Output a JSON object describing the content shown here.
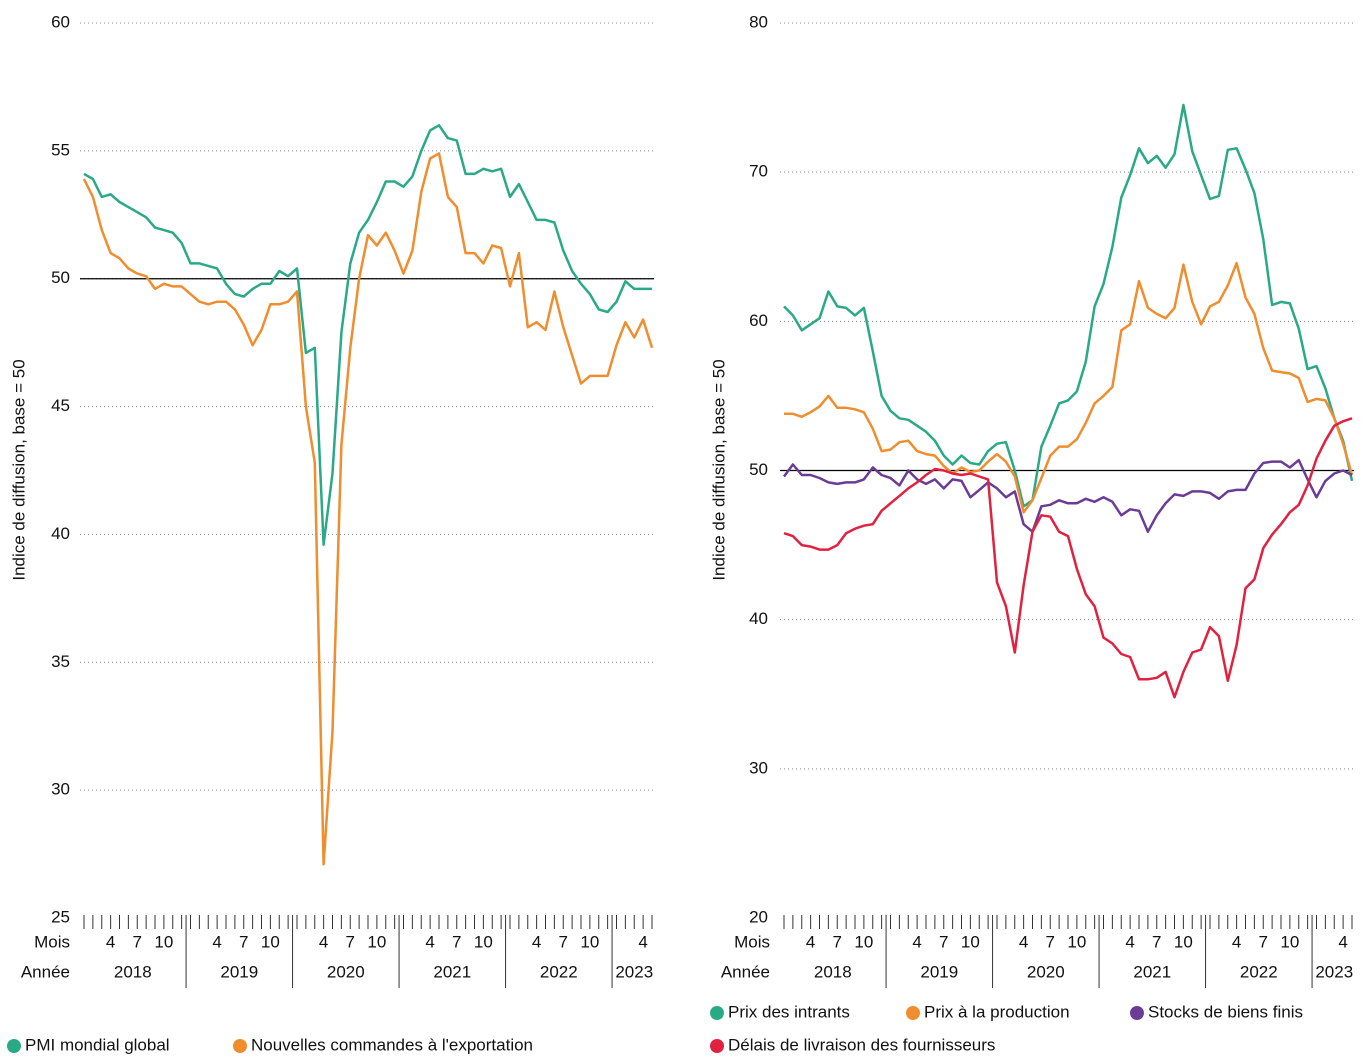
{
  "chart_data": [
    {
      "type": "line",
      "ylabel": "Indice de diffusion, base = 50",
      "xlabel_month": "Mois",
      "xlabel_year": "Année",
      "x": [
        "2018-01",
        "2018-02",
        "2018-03",
        "2018-04",
        "2018-05",
        "2018-06",
        "2018-07",
        "2018-08",
        "2018-09",
        "2018-10",
        "2018-11",
        "2018-12",
        "2019-01",
        "2019-02",
        "2019-03",
        "2019-04",
        "2019-05",
        "2019-06",
        "2019-07",
        "2019-08",
        "2019-09",
        "2019-10",
        "2019-11",
        "2019-12",
        "2020-01",
        "2020-02",
        "2020-03",
        "2020-04",
        "2020-05",
        "2020-06",
        "2020-07",
        "2020-08",
        "2020-09",
        "2020-10",
        "2020-11",
        "2020-12",
        "2021-01",
        "2021-02",
        "2021-03",
        "2021-04",
        "2021-05",
        "2021-06",
        "2021-07",
        "2021-08",
        "2021-09",
        "2021-10",
        "2021-11",
        "2021-12",
        "2022-01",
        "2022-02",
        "2022-03",
        "2022-04",
        "2022-05",
        "2022-06",
        "2022-07",
        "2022-08",
        "2022-09",
        "2022-10",
        "2022-11",
        "2022-12",
        "2023-01",
        "2023-02",
        "2023-03",
        "2023-04",
        "2023-05"
      ],
      "xticks": [
        {
          "value": "2018-04",
          "label": "4"
        },
        {
          "value": "2018-07",
          "label": "7"
        },
        {
          "value": "2018-10",
          "label": "10"
        },
        {
          "value": "2019-04",
          "label": "4"
        },
        {
          "value": "2019-07",
          "label": "7"
        },
        {
          "value": "2019-10",
          "label": "10"
        },
        {
          "value": "2020-04",
          "label": "4"
        },
        {
          "value": "2020-07",
          "label": "7"
        },
        {
          "value": "2020-10",
          "label": "10"
        },
        {
          "value": "2021-04",
          "label": "4"
        },
        {
          "value": "2021-07",
          "label": "7"
        },
        {
          "value": "2021-10",
          "label": "10"
        },
        {
          "value": "2022-04",
          "label": "4"
        },
        {
          "value": "2022-07",
          "label": "7"
        },
        {
          "value": "2022-10",
          "label": "10"
        },
        {
          "value": "2023-04",
          "label": "4"
        }
      ],
      "years": [
        "2018",
        "2019",
        "2020",
        "2021",
        "2022",
        "2023"
      ],
      "ylim": [
        25,
        60
      ],
      "yticks": [
        25,
        30,
        35,
        40,
        45,
        50,
        55,
        60
      ],
      "grid": true,
      "hline": 50,
      "series": [
        {
          "name": "PMI mondial global",
          "color": "#2aa987",
          "values": [
            54.1,
            53.9,
            53.2,
            53.3,
            53.0,
            52.8,
            52.6,
            52.4,
            52.0,
            51.9,
            51.8,
            51.4,
            50.6,
            50.6,
            50.5,
            50.4,
            49.8,
            49.4,
            49.3,
            49.6,
            49.8,
            49.8,
            50.3,
            50.1,
            50.4,
            47.1,
            47.3,
            39.6,
            42.4,
            47.9,
            50.6,
            51.8,
            52.3,
            53.0,
            53.8,
            53.8,
            53.6,
            54.0,
            55.0,
            55.8,
            56.0,
            55.5,
            55.4,
            54.1,
            54.1,
            54.3,
            54.2,
            54.3,
            53.2,
            53.7,
            53.0,
            52.3,
            52.3,
            52.2,
            51.1,
            50.3,
            49.8,
            49.4,
            48.8,
            48.7,
            49.1,
            49.9,
            49.6,
            49.6,
            49.6
          ]
        },
        {
          "name": "Nouvelles commandes à l'exportation",
          "color": "#ef8d2f",
          "values": [
            53.9,
            53.2,
            51.9,
            51.0,
            50.8,
            50.4,
            50.2,
            50.1,
            49.6,
            49.8,
            49.7,
            49.7,
            49.4,
            49.1,
            49.0,
            49.1,
            49.1,
            48.8,
            48.2,
            47.4,
            48.0,
            49.0,
            49.0,
            49.1,
            49.5,
            45.0,
            42.8,
            27.1,
            32.3,
            43.5,
            47.3,
            50.0,
            51.7,
            51.3,
            51.8,
            51.1,
            50.2,
            51.1,
            53.4,
            54.7,
            54.9,
            53.2,
            52.8,
            51.0,
            51.0,
            50.6,
            51.3,
            51.2,
            49.7,
            51.0,
            48.1,
            48.3,
            48.0,
            49.5,
            48.1,
            47.0,
            45.9,
            46.2,
            46.2,
            46.2,
            47.4,
            48.3,
            47.7,
            48.4,
            47.3
          ]
        }
      ]
    },
    {
      "type": "line",
      "ylabel": "Indice de diffusion, base = 50",
      "xlabel_month": "Mois",
      "xlabel_year": "Année",
      "x": [
        "2018-01",
        "2018-02",
        "2018-03",
        "2018-04",
        "2018-05",
        "2018-06",
        "2018-07",
        "2018-08",
        "2018-09",
        "2018-10",
        "2018-11",
        "2018-12",
        "2019-01",
        "2019-02",
        "2019-03",
        "2019-04",
        "2019-05",
        "2019-06",
        "2019-07",
        "2019-08",
        "2019-09",
        "2019-10",
        "2019-11",
        "2019-12",
        "2020-01",
        "2020-02",
        "2020-03",
        "2020-04",
        "2020-05",
        "2020-06",
        "2020-07",
        "2020-08",
        "2020-09",
        "2020-10",
        "2020-11",
        "2020-12",
        "2021-01",
        "2021-02",
        "2021-03",
        "2021-04",
        "2021-05",
        "2021-06",
        "2021-07",
        "2021-08",
        "2021-09",
        "2021-10",
        "2021-11",
        "2021-12",
        "2022-01",
        "2022-02",
        "2022-03",
        "2022-04",
        "2022-05",
        "2022-06",
        "2022-07",
        "2022-08",
        "2022-09",
        "2022-10",
        "2022-11",
        "2022-12",
        "2023-01",
        "2023-02",
        "2023-03",
        "2023-04",
        "2023-05"
      ],
      "xticks": [
        {
          "value": "2018-04",
          "label": "4"
        },
        {
          "value": "2018-07",
          "label": "7"
        },
        {
          "value": "2018-10",
          "label": "10"
        },
        {
          "value": "2019-04",
          "label": "4"
        },
        {
          "value": "2019-07",
          "label": "7"
        },
        {
          "value": "2019-10",
          "label": "10"
        },
        {
          "value": "2020-04",
          "label": "4"
        },
        {
          "value": "2020-07",
          "label": "7"
        },
        {
          "value": "2020-10",
          "label": "10"
        },
        {
          "value": "2021-04",
          "label": "4"
        },
        {
          "value": "2021-07",
          "label": "7"
        },
        {
          "value": "2021-10",
          "label": "10"
        },
        {
          "value": "2022-04",
          "label": "4"
        },
        {
          "value": "2022-07",
          "label": "7"
        },
        {
          "value": "2022-10",
          "label": "10"
        },
        {
          "value": "2023-04",
          "label": "4"
        }
      ],
      "years": [
        "2018",
        "2019",
        "2020",
        "2021",
        "2022",
        "2023"
      ],
      "ylim": [
        20,
        80
      ],
      "yticks": [
        20,
        30,
        40,
        50,
        60,
        70,
        80
      ],
      "grid": true,
      "hline": 50,
      "series": [
        {
          "name": "Prix des intrants",
          "color": "#2aa987",
          "values": [
            61.0,
            60.4,
            59.4,
            59.8,
            60.2,
            62.0,
            61.0,
            60.9,
            60.4,
            60.9,
            58.0,
            55.0,
            54.0,
            53.5,
            53.4,
            53.0,
            52.6,
            52.0,
            51.0,
            50.4,
            51.0,
            50.5,
            50.4,
            51.3,
            51.8,
            51.9,
            50.0,
            47.6,
            48.0,
            51.6,
            53.0,
            54.5,
            54.7,
            55.3,
            57.3,
            61.0,
            62.5,
            65.0,
            68.3,
            69.8,
            71.6,
            70.6,
            71.1,
            70.3,
            71.2,
            74.5,
            71.4,
            69.8,
            68.2,
            68.4,
            71.5,
            71.6,
            70.2,
            68.6,
            65.5,
            61.1,
            61.3,
            61.2,
            59.5,
            56.8,
            57.0,
            55.5,
            53.5,
            52.0,
            49.3
          ]
        },
        {
          "name": "Prix à la production",
          "color": "#ef8d2f",
          "values": [
            53.8,
            53.8,
            53.6,
            53.9,
            54.3,
            55.0,
            54.2,
            54.2,
            54.1,
            53.9,
            52.8,
            51.3,
            51.4,
            51.9,
            52.0,
            51.3,
            51.1,
            51.0,
            50.3,
            49.8,
            50.2,
            49.9,
            50.0,
            50.6,
            51.1,
            50.6,
            49.6,
            47.2,
            48.0,
            49.5,
            51.0,
            51.6,
            51.6,
            52.1,
            53.2,
            54.5,
            55.0,
            55.6,
            59.4,
            59.8,
            62.7,
            60.9,
            60.5,
            60.2,
            60.9,
            63.8,
            61.3,
            59.8,
            61.0,
            61.3,
            62.4,
            63.9,
            61.6,
            60.5,
            58.2,
            56.7,
            56.6,
            56.5,
            56.2,
            54.6,
            54.8,
            54.7,
            53.5,
            51.8,
            49.7
          ]
        },
        {
          "name": "Stocks de biens finis",
          "color": "#6b3c96",
          "values": [
            49.6,
            50.4,
            49.7,
            49.7,
            49.5,
            49.2,
            49.1,
            49.2,
            49.2,
            49.4,
            50.2,
            49.7,
            49.5,
            49.0,
            50.0,
            49.4,
            49.1,
            49.4,
            48.8,
            49.4,
            49.3,
            48.2,
            48.7,
            49.2,
            48.8,
            48.2,
            48.6,
            46.4,
            45.9,
            47.6,
            47.7,
            48.0,
            47.8,
            47.8,
            48.1,
            47.9,
            48.2,
            47.9,
            47.0,
            47.4,
            47.3,
            45.9,
            47.0,
            47.8,
            48.4,
            48.3,
            48.6,
            48.6,
            48.5,
            48.1,
            48.6,
            48.7,
            48.7,
            49.8,
            50.5,
            50.6,
            50.6,
            50.2,
            50.7,
            49.4,
            48.2,
            49.3,
            49.8,
            50.0,
            49.7
          ]
        },
        {
          "name": "Délais de livraison des fournisseurs",
          "color": "#e0213f",
          "values": [
            45.8,
            45.6,
            45.0,
            44.9,
            44.7,
            44.7,
            45.0,
            45.8,
            46.1,
            46.3,
            46.4,
            47.3,
            47.8,
            48.3,
            48.8,
            49.2,
            49.7,
            50.1,
            50.0,
            49.8,
            49.7,
            49.8,
            49.6,
            49.4,
            42.5,
            40.9,
            37.8,
            42.3,
            45.9,
            47.0,
            46.9,
            45.9,
            45.6,
            43.4,
            41.7,
            40.9,
            38.8,
            38.4,
            37.7,
            37.5,
            36.0,
            36.0,
            36.1,
            36.5,
            34.8,
            36.5,
            37.8,
            38.0,
            39.5,
            38.9,
            35.9,
            38.3,
            42.1,
            42.7,
            44.8,
            45.7,
            46.4,
            47.2,
            47.7,
            49.0,
            50.8,
            52.0,
            53.0,
            53.3,
            53.5
          ]
        }
      ]
    }
  ]
}
